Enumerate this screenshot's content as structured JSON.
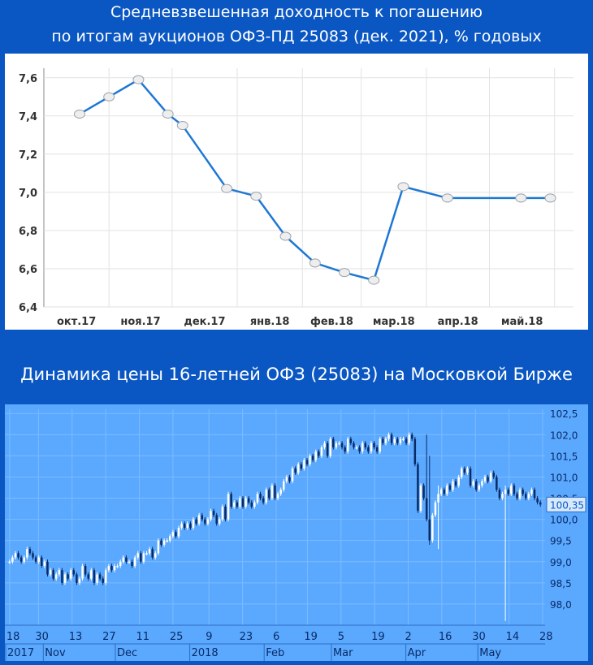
{
  "header": {
    "title_line1": "Средневзвешенная доходность к погашению",
    "title_line2": "по итогам аукционов ОФЗ-ПД 25083 (дек. 2021), % годовых"
  },
  "second_title": "Динамика цены 16-летней ОФЗ (25083) на Московкой Бирже",
  "colors": {
    "background": "#0a57c3",
    "yield_line": "#1f77d4",
    "price_panel": "#5aa9ff",
    "candle_up": "#ffffff",
    "candle_down": "#0a2a66"
  },
  "chart_data": [
    {
      "type": "line",
      "title": "Средневзвешенная доходность к погашению по итогам аукционов ОФЗ-ПД 25083 (дек. 2021), % годовых",
      "x_tick_labels": [
        "окт.17",
        "ноя.17",
        "дек.17",
        "янв.18",
        "фев.18",
        "мар.18",
        "апр.18",
        "май.18"
      ],
      "y_tick_labels": [
        "6,4",
        "6,6",
        "6,8",
        "7,0",
        "7,2",
        "7,4",
        "7,6"
      ],
      "ylim": [
        6.4,
        7.65
      ],
      "grid": true,
      "series": [
        {
          "x": [
            "2017-10-18",
            "2017-11-01",
            "2017-11-15",
            "2017-11-29",
            "2017-12-06",
            "2017-12-27",
            "2018-01-10",
            "2018-01-24",
            "2018-02-07",
            "2018-02-21",
            "2018-03-07",
            "2018-03-21",
            "2018-04-11",
            "2018-05-16",
            "2018-05-30"
          ],
          "y": [
            7.41,
            7.5,
            7.59,
            7.41,
            7.35,
            7.02,
            6.98,
            6.77,
            6.63,
            6.58,
            6.54,
            7.03,
            6.97,
            6.97,
            6.97
          ]
        }
      ]
    },
    {
      "type": "candlestick",
      "title": "Динамика цены 16-летней ОФЗ (25083) на Московкой Бирже",
      "x_tick_labels": [
        "18",
        "30",
        "13",
        "27",
        "11",
        "25",
        "9",
        "23",
        "6",
        "19",
        "5",
        "19",
        "2",
        "16",
        "30",
        "14",
        "28"
      ],
      "x_tick_dates": [
        "2017-10-18",
        "2017-10-30",
        "2017-11-13",
        "2017-11-27",
        "2017-12-11",
        "2017-12-25",
        "2018-01-09",
        "2018-01-23",
        "2018-02-06",
        "2018-02-19",
        "2018-03-05",
        "2018-03-19",
        "2018-04-02",
        "2018-04-16",
        "2018-04-30",
        "2018-05-14",
        "2018-05-28"
      ],
      "period_labels": [
        "2017",
        "Nov",
        "Dec",
        "2018",
        "Feb",
        "Mar",
        "Apr",
        "May"
      ],
      "period_dates": [
        "2017-10-16",
        "2017-11-01",
        "2017-12-01",
        "2018-01-01",
        "2018-02-01",
        "2018-03-01",
        "2018-04-01",
        "2018-05-01"
      ],
      "y_tick_labels": [
        "98,0",
        "98,5",
        "99,0",
        "99,5",
        "100,0",
        "100,5",
        "101,0",
        "101,5",
        "102,0",
        "102,5"
      ],
      "ylim": [
        97.5,
        102.6
      ],
      "last_price_label": "100,35",
      "last_price": 100.35,
      "grid": true,
      "closes": [
        99.0,
        99.1,
        99.2,
        99.1,
        99.0,
        99.1,
        99.3,
        99.2,
        99.1,
        99.0,
        99.1,
        98.9,
        99.0,
        98.7,
        98.8,
        98.6,
        98.7,
        98.8,
        98.5,
        98.7,
        98.6,
        98.8,
        98.7,
        98.5,
        98.6,
        98.9,
        98.7,
        98.6,
        98.8,
        98.5,
        98.7,
        98.6,
        98.5,
        98.8,
        98.9,
        98.8,
        98.9,
        98.9,
        99.0,
        99.1,
        99.0,
        99.0,
        98.9,
        99.1,
        99.2,
        99.0,
        99.2,
        99.2,
        99.3,
        99.1,
        99.2,
        99.5,
        99.4,
        99.5,
        99.5,
        99.6,
        99.7,
        99.6,
        99.8,
        99.9,
        99.8,
        99.9,
        99.8,
        100.0,
        99.9,
        100.1,
        100.0,
        99.9,
        100.0,
        100.2,
        100.1,
        99.9,
        100.0,
        100.3,
        100.0,
        100.6,
        100.3,
        100.4,
        100.3,
        100.5,
        100.3,
        100.5,
        100.4,
        100.3,
        100.4,
        100.6,
        100.5,
        100.4,
        100.7,
        100.5,
        100.8,
        100.5,
        100.6,
        100.7,
        100.9,
        101.0,
        100.9,
        101.2,
        101.1,
        101.3,
        101.2,
        101.4,
        101.3,
        101.5,
        101.4,
        101.6,
        101.5,
        101.7,
        101.8,
        101.5,
        101.9,
        101.7,
        101.8,
        101.8,
        101.7,
        101.6,
        101.9,
        101.8,
        101.7,
        101.7,
        101.6,
        101.8,
        101.7,
        101.6,
        101.8,
        101.7,
        101.6,
        101.9,
        101.8,
        101.9,
        102.0,
        101.8,
        101.9,
        101.8,
        101.9,
        101.9,
        101.8,
        102.0,
        101.9,
        101.3,
        100.2,
        100.8,
        100.5,
        100.0,
        99.5,
        100.1,
        100.4,
        100.6,
        100.7,
        100.6,
        100.8,
        100.7,
        100.9,
        100.8,
        101.0,
        101.2,
        101.1,
        101.2,
        100.8,
        100.9,
        100.7,
        100.8,
        100.9,
        101.0,
        100.9,
        101.1,
        101.0,
        100.7,
        100.5,
        100.6,
        100.7,
        100.6,
        100.8,
        100.6,
        100.5,
        100.7,
        100.6,
        100.5,
        100.6,
        100.7,
        100.5,
        100.4,
        100.35
      ]
    }
  ]
}
